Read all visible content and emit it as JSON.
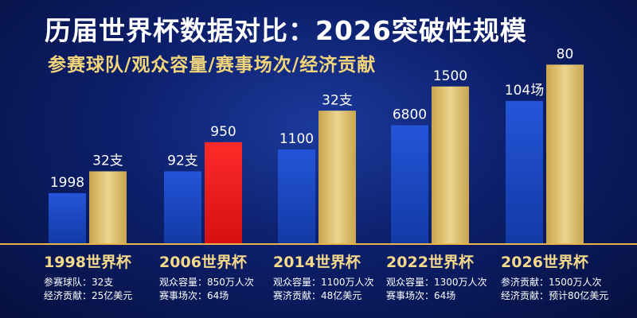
{
  "header": {
    "title": "历届世界杯数据对比：2026突破性规模",
    "subtitle": "参赛球队/观众容量/赛事场次/经济贡献"
  },
  "colors": {
    "blue_bar": "#1a45c8",
    "gold_bar": "#d8b65a",
    "highlight_bar": "#e51c1c",
    "highlight_label": "#ff3b30",
    "group_label": "#f5d98a",
    "axis_line": "#e9b54a"
  },
  "chart_data": {
    "type": "bar",
    "categories": [
      "1998世界杯",
      "2006世界杯",
      "2014世界杯",
      "2022世界杯",
      "2026世界杯"
    ],
    "groups": [
      {
        "label": "1998世界杯",
        "bars": [
          {
            "value": 1998,
            "label": "1998",
            "style": "blue"
          },
          {
            "value": 32,
            "label": "32支",
            "style": "gold"
          }
        ],
        "details": [
          "参赛球队：32支",
          "经济贡献：25亿美元"
        ]
      },
      {
        "label": "2006世界杯",
        "bars": [
          {
            "value": 92,
            "label": "92支",
            "style": "blue"
          },
          {
            "value": 950,
            "label": "950",
            "style": "red"
          }
        ],
        "details": [
          "观众容量：850万人次",
          "赛事场次：64场"
        ]
      },
      {
        "label": "2014世界杯",
        "bars": [
          {
            "value": 1100,
            "label": "1100",
            "style": "blue"
          },
          {
            "value": 32,
            "label": "32支",
            "style": "gold"
          }
        ],
        "details": [
          "观众容量：1100万人次",
          "赛济贡献：48亿美元"
        ]
      },
      {
        "label": "2022世界杯",
        "bars": [
          {
            "value": 6800,
            "label": "6800",
            "style": "blue"
          },
          {
            "value": 1500,
            "label": "1500",
            "style": "gold"
          }
        ],
        "details": [
          "观众容量：1300万人次",
          "赛事场次：64场"
        ]
      },
      {
        "label": "2026世界杯",
        "bars": [
          {
            "value": 104,
            "label": "104场",
            "style": "blue"
          },
          {
            "value": 80,
            "label": "80",
            "style": "gold"
          }
        ],
        "details": [
          "参济贡献：1500万人次",
          "经济贡献：预计80亿美元"
        ]
      }
    ],
    "bar_levels": [
      [
        0.21,
        0.3
      ],
      [
        0.3,
        0.42
      ],
      [
        0.39,
        0.55
      ],
      [
        0.49,
        0.65
      ],
      [
        0.59,
        0.74
      ]
    ],
    "title": "历届世界杯数据对比：2026突破性规模",
    "subtitle": "参赛球队/观众容量/赛事场次/经济贡献"
  }
}
